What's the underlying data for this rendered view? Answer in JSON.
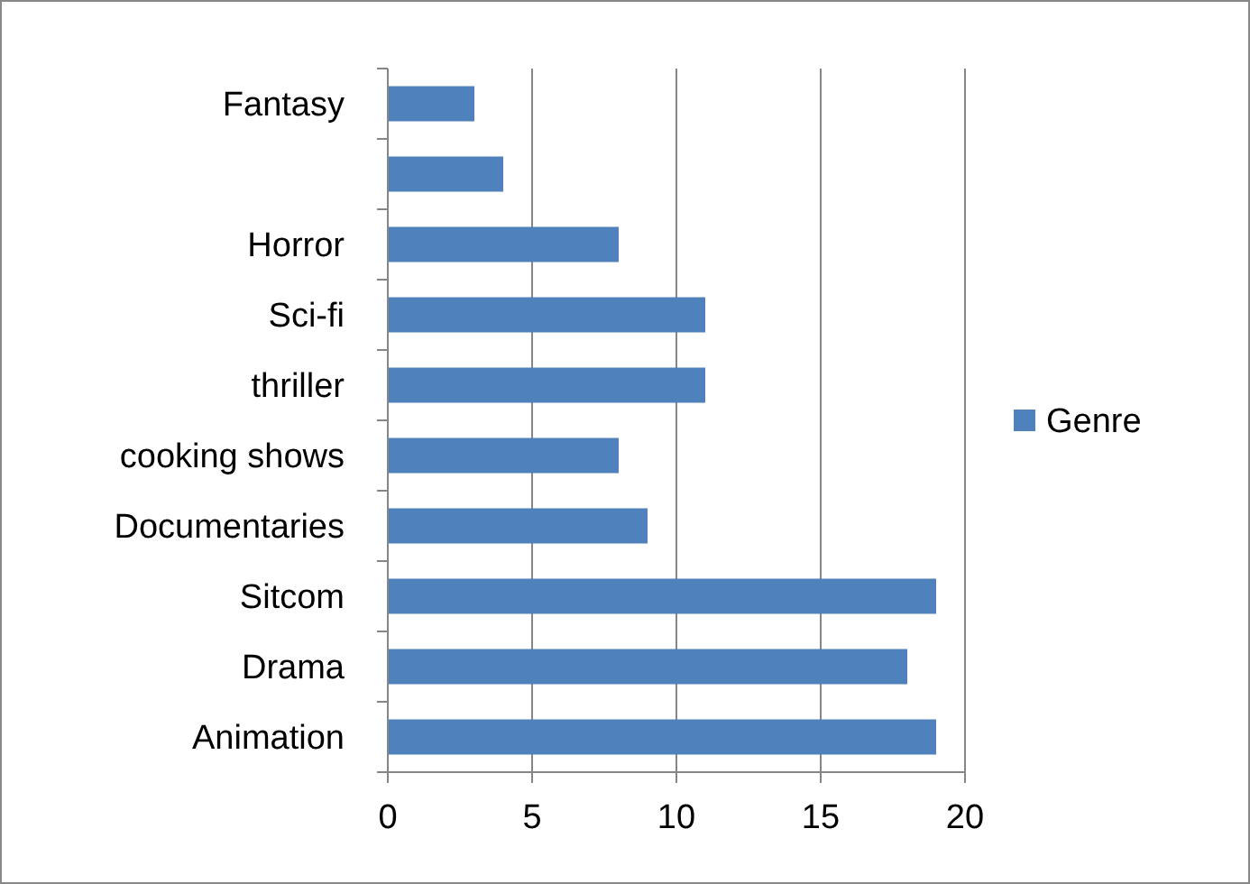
{
  "chart_data": {
    "type": "bar",
    "orientation": "horizontal",
    "categories": [
      "Fantasy",
      null,
      "Horror",
      "Sci-fi",
      "thriller",
      "cooking shows",
      "Documentaries",
      "Sitcom",
      "Drama",
      "Animation"
    ],
    "series": [
      {
        "name": "Genre",
        "color": "#4f81bd",
        "values": [
          3,
          4,
          8,
          11,
          11,
          8,
          9,
          19,
          18,
          19
        ]
      }
    ],
    "xlim": [
      0,
      20
    ],
    "xticks": [
      0,
      5,
      10,
      15,
      20
    ],
    "grid": "x",
    "legend": "right"
  }
}
